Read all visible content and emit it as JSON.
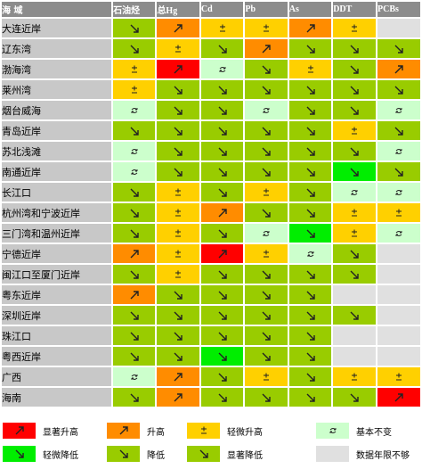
{
  "header": {
    "region": "海  域",
    "columns": [
      "石油烃",
      "总Hg",
      "Cd",
      "Pb",
      "As",
      "DDT",
      "PCBs"
    ]
  },
  "colors": {
    "sig_up": "#ff0000",
    "up": "#ff8c00",
    "slight_up": "#ffd000",
    "stable": "#ccffcc",
    "slight_down": "#00ee00",
    "down": "#99cc00",
    "sig_down": "#99cc00",
    "nodata": "#e0e0e0"
  },
  "icons": {
    "sig_up": "arrow-up-right-icon",
    "up": "arrow-up-right-icon",
    "slight_up": "plus-minus-icon",
    "stable": "loop-arrow-icon",
    "slight_down": "arrow-down-right-icon",
    "down": "arrow-down-right-icon",
    "sig_down": "arrow-down-right-icon"
  },
  "rows": [
    {
      "name": "大连近岸",
      "cells": [
        "sig_down",
        "up",
        "slight_up",
        "slight_up",
        "up",
        "slight_up",
        "nodata"
      ]
    },
    {
      "name": "辽东湾",
      "cells": [
        "sig_down",
        "slight_up",
        "sig_down",
        "up",
        "sig_down",
        "sig_down",
        "sig_down"
      ]
    },
    {
      "name": "渤海湾",
      "cells": [
        "slight_up",
        "sig_up",
        "stable",
        "sig_down",
        "slight_up",
        "sig_down",
        "up"
      ]
    },
    {
      "name": "莱州湾",
      "cells": [
        "slight_up",
        "sig_down",
        "sig_down",
        "sig_down",
        "sig_down",
        "sig_down",
        "sig_down"
      ]
    },
    {
      "name": "烟台威海",
      "cells": [
        "stable",
        "sig_down",
        "sig_down",
        "stable",
        "sig_down",
        "sig_down",
        "stable"
      ]
    },
    {
      "name": "青岛近岸",
      "cells": [
        "sig_down",
        "sig_down",
        "sig_down",
        "sig_down",
        "sig_down",
        "slight_up",
        "sig_down"
      ]
    },
    {
      "name": "苏北浅滩",
      "cells": [
        "stable",
        "sig_down",
        "sig_down",
        "sig_down",
        "sig_down",
        "sig_down",
        "stable"
      ]
    },
    {
      "name": "南通近岸",
      "cells": [
        "stable",
        "sig_down",
        "sig_down",
        "sig_down",
        "sig_down",
        "slight_down",
        "sig_down"
      ]
    },
    {
      "name": "长江口",
      "cells": [
        "sig_down",
        "slight_up",
        "sig_down",
        "slight_up",
        "sig_down",
        "stable",
        "stable"
      ]
    },
    {
      "name": "杭州湾和宁波近岸",
      "cells": [
        "sig_down",
        "slight_up",
        "up",
        "sig_down",
        "sig_down",
        "slight_up",
        "slight_up"
      ]
    },
    {
      "name": "三门湾和温州近岸",
      "cells": [
        "sig_down",
        "slight_up",
        "sig_down",
        "stable",
        "slight_down",
        "slight_up",
        "stable"
      ]
    },
    {
      "name": "宁德近岸",
      "cells": [
        "up",
        "slight_up",
        "sig_up",
        "slight_up",
        "stable",
        "sig_down",
        "nodata"
      ]
    },
    {
      "name": "闽江口至厦门近岸",
      "cells": [
        "sig_down",
        "slight_up",
        "sig_down",
        "sig_down",
        "sig_down",
        "sig_down",
        "nodata"
      ]
    },
    {
      "name": "粤东近岸",
      "cells": [
        "up",
        "sig_down",
        "sig_down",
        "sig_down",
        "sig_down",
        "nodata",
        "nodata"
      ]
    },
    {
      "name": "深圳近岸",
      "cells": [
        "sig_down",
        "sig_down",
        "sig_down",
        "sig_down",
        "sig_down",
        "sig_down",
        "nodata"
      ]
    },
    {
      "name": "珠江口",
      "cells": [
        "sig_down",
        "sig_down",
        "sig_down",
        "sig_down",
        "sig_down",
        "nodata",
        "nodata"
      ]
    },
    {
      "name": "粤西近岸",
      "cells": [
        "sig_down",
        "sig_down",
        "slight_down",
        "sig_down",
        "sig_down",
        "nodata",
        "nodata"
      ]
    },
    {
      "name": "广西",
      "cells": [
        "stable",
        "up",
        "sig_down",
        "slight_up",
        "sig_down",
        "slight_up",
        "slight_up"
      ]
    },
    {
      "name": "海南",
      "cells": [
        "sig_down",
        "up",
        "sig_down",
        "sig_down",
        "sig_down",
        "sig_down",
        "sig_up"
      ]
    }
  ],
  "legend": [
    {
      "key": "sig_up",
      "label": "显著升高"
    },
    {
      "key": "up",
      "label": "升高"
    },
    {
      "key": "slight_up",
      "label": "轻微升高"
    },
    {
      "key": "stable",
      "label": "基本不变"
    },
    {
      "key": "slight_down",
      "label": "轻微降低"
    },
    {
      "key": "down",
      "label": "降低"
    },
    {
      "key": "sig_down",
      "label": "显著降低"
    },
    {
      "key": "nodata",
      "label": "数据年限不够"
    }
  ]
}
